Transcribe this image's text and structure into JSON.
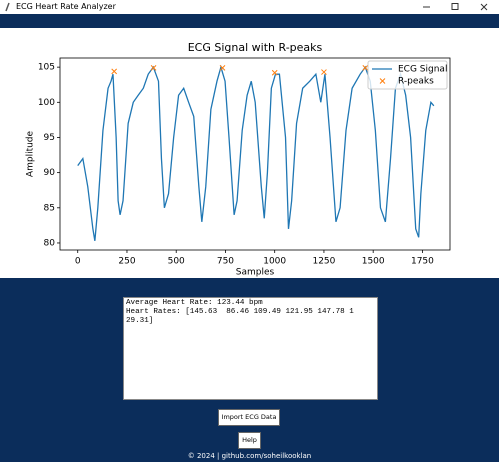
{
  "window": {
    "title": "ECG Heart Rate Analyzer"
  },
  "chart_data": {
    "type": "line",
    "title": "ECG Signal with R-peaks",
    "x_label": "Samples",
    "y_label": "Amplitude",
    "xlim": [
      -90,
      1890
    ],
    "xticks": [
      0,
      250,
      500,
      750,
      1000,
      1250,
      1500,
      1750
    ],
    "ylim": [
      79,
      106.3
    ],
    "yticks": [
      80,
      85,
      90,
      95,
      100,
      105
    ],
    "legend": "upper right",
    "series": [
      {
        "name": "ECG Signal",
        "color": "#1f77b4",
        "x": [
          0,
          26,
          51,
          77,
          87,
          102,
          128,
          154,
          169,
          179,
          195,
          205,
          215,
          230,
          256,
          282,
          307,
          333,
          358,
          384,
          410,
          425,
          440,
          461,
          487,
          512,
          538,
          563,
          589,
          615,
          630,
          650,
          676,
          707,
          727,
          748,
          768,
          794,
          809,
          835,
          860,
          881,
          901,
          932,
          947,
          963,
          983,
          1004,
          1024,
          1055,
          1070,
          1086,
          1111,
          1142,
          1178,
          1209,
          1234,
          1255,
          1281,
          1311,
          1332,
          1362,
          1393,
          1434,
          1460,
          1485,
          1511,
          1537,
          1562,
          1588,
          1613,
          1639,
          1665,
          1690,
          1716,
          1731,
          1742,
          1767,
          1793,
          1808
        ],
        "values": [
          91,
          92,
          88,
          82,
          80.3,
          85,
          96,
          102,
          103,
          104,
          95,
          86,
          84,
          86,
          97,
          100,
          101,
          102,
          104,
          105,
          103,
          92,
          85,
          87,
          95,
          101,
          102,
          100,
          98,
          88,
          83,
          88,
          99,
          103,
          105,
          103,
          95,
          84,
          86,
          96,
          101,
          103,
          100,
          88,
          83.5,
          90,
          102,
          104,
          104,
          95,
          82,
          86,
          97,
          102,
          103,
          104,
          100,
          104,
          95,
          83,
          85,
          96,
          102,
          104,
          105,
          103,
          96,
          85,
          83,
          92,
          102,
          104,
          101,
          95,
          82,
          80.8,
          87,
          96,
          100,
          99.5
        ]
      },
      {
        "name": "R-peaks",
        "color": "#ff7f0e",
        "marker": "x",
        "x": [
          185,
          385,
          735,
          1000,
          1250,
          1460
        ],
        "values": [
          104.4,
          104.9,
          104.9,
          104.2,
          104.3,
          104.9
        ]
      }
    ]
  },
  "results": {
    "lines": [
      "Average Heart Rate: 123.44 bpm",
      "Heart Rates: [145.63  86.46 109.49 121.95 147.78 1",
      "29.31]"
    ]
  },
  "buttons": [
    "Import ECG Data",
    "Help"
  ],
  "footer": "© 2024 | github.com/soheilkooklan"
}
